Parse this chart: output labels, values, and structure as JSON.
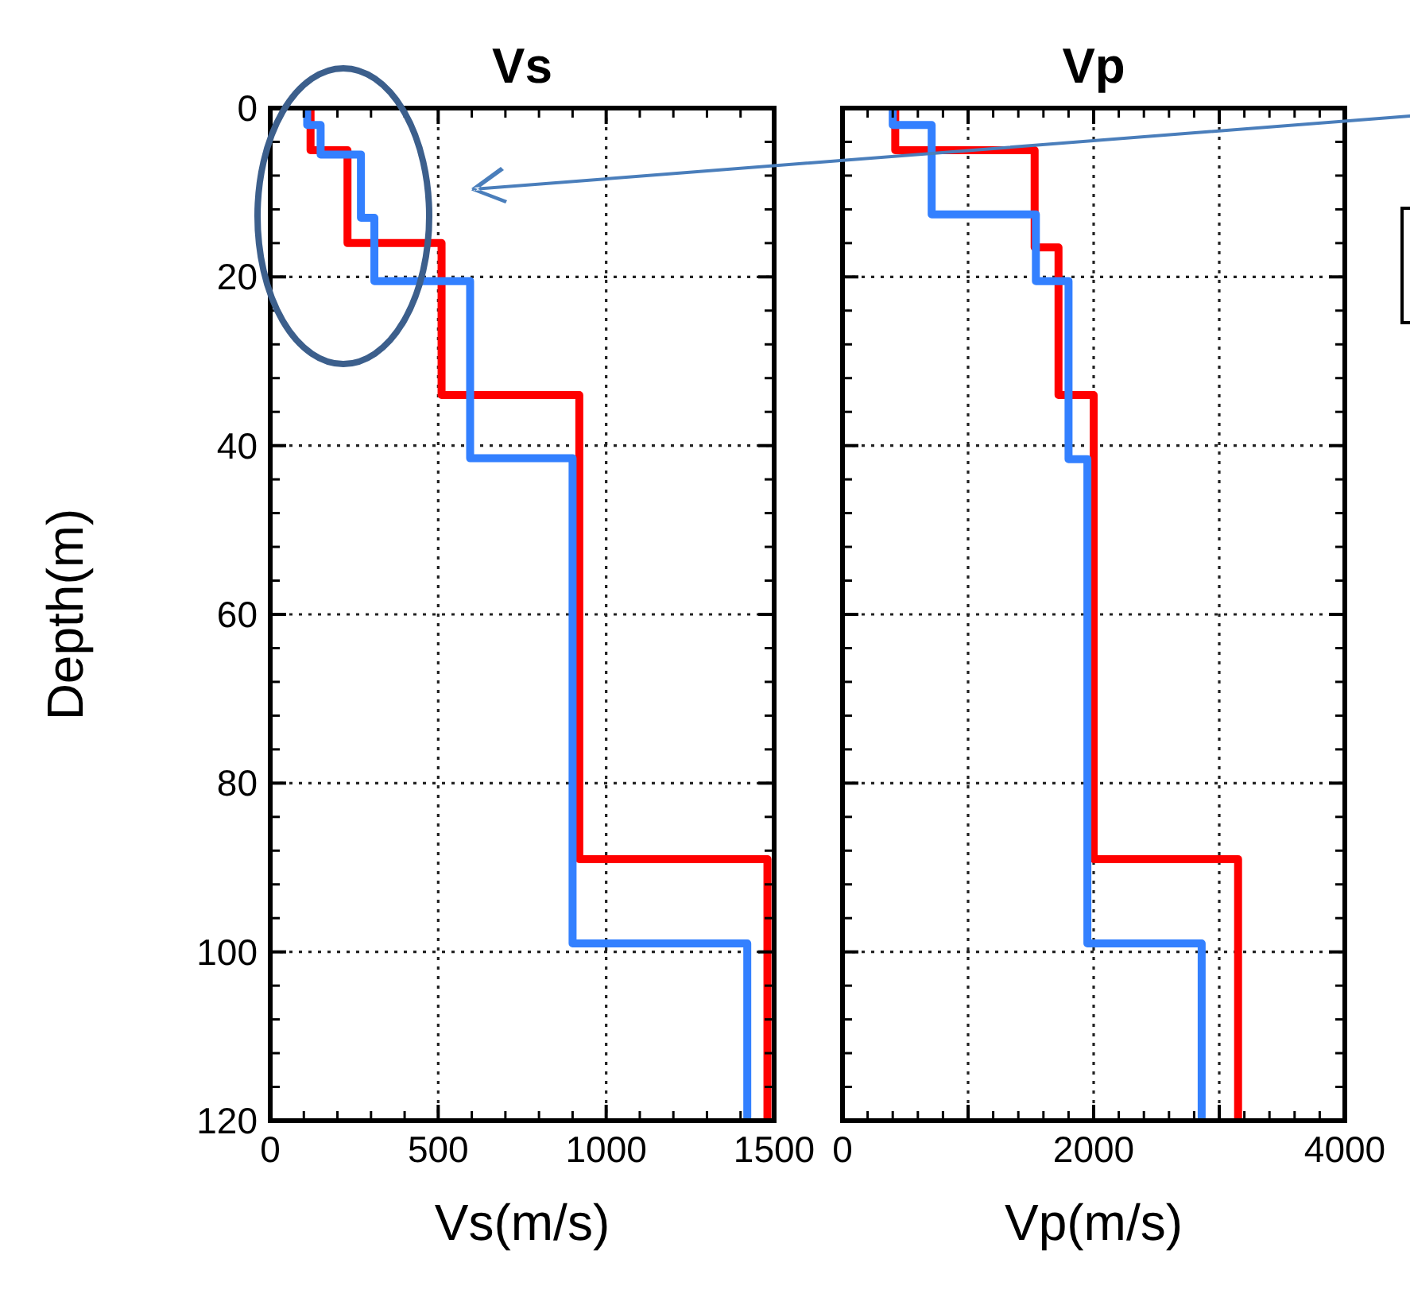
{
  "chart_data": [
    {
      "type": "line",
      "title": "Vs",
      "xlabel": "Vs(m/s)",
      "ylabel": "Depth(m)",
      "xlim": [
        0,
        1500
      ],
      "xticks": [
        0,
        500,
        1000,
        1500
      ],
      "ylim": [
        120,
        0
      ],
      "yticks": [
        0,
        20,
        40,
        60,
        80,
        100,
        120
      ],
      "grid": true,
      "line_style": "solid",
      "marker": "none",
      "series": [
        {
          "color": "#ff0000",
          "x": [
            120,
            120,
            230,
            230,
            510,
            510,
            920,
            920,
            1480,
            1480
          ],
          "values": [
            0,
            5,
            5,
            16,
            16,
            34,
            34,
            89,
            89,
            120
          ]
        },
        {
          "color": "#3380ff",
          "x": [
            110,
            110,
            150,
            150,
            270,
            270,
            310,
            310,
            595,
            595,
            900,
            900,
            1420,
            1420
          ],
          "values": [
            0,
            2,
            2,
            5.5,
            5.5,
            13,
            13,
            20.5,
            20.5,
            41.5,
            41.5,
            99,
            99,
            120
          ]
        }
      ]
    },
    {
      "type": "line",
      "title": "Vp",
      "xlabel": "Vp(m/s)",
      "xlim": [
        0,
        4000
      ],
      "xticks": [
        0,
        {
          "value": 1000,
          "label": null
        },
        2000,
        {
          "value": 3000,
          "label": null
        },
        4000
      ],
      "ylim": [
        120,
        0
      ],
      "yticks": [
        0,
        20,
        40,
        60,
        80,
        100,
        120
      ],
      "tick_labels": "x",
      "grid": true,
      "line_style": "solid",
      "marker": "none",
      "series": [
        {
          "color": "#ff0000",
          "x": [
            420,
            420,
            1530,
            1530,
            1720,
            1720,
            2000,
            2000,
            3150,
            3150
          ],
          "values": [
            0,
            5,
            5,
            16.5,
            16.5,
            34,
            34,
            89,
            89,
            120
          ]
        },
        {
          "color": "#3380ff",
          "x": [
            400,
            400,
            710,
            710,
            1540,
            1540,
            1800,
            1800,
            1950,
            1950,
            2860,
            2860
          ],
          "values": [
            0,
            2,
            2,
            12.6,
            12.6,
            20.5,
            20.5,
            41.6,
            41.6,
            99,
            99,
            120
          ]
        }
      ]
    }
  ]
}
